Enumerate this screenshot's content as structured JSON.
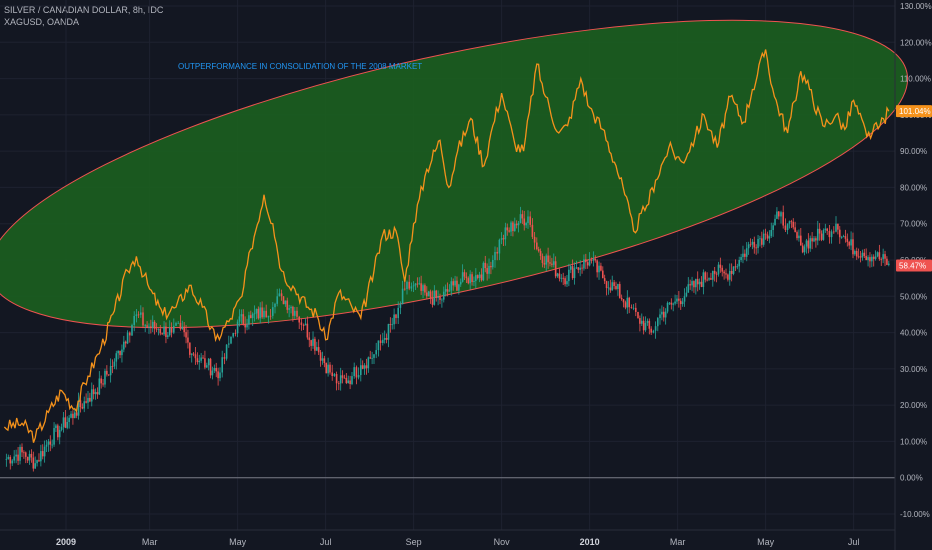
{
  "header": {
    "title": "SILVER / CANADIAN DOLLAR, 8h, IDC",
    "compare": "XAGUSD, OANDA"
  },
  "colors": {
    "background": "#131722",
    "grid": "#1e2230",
    "main_up": "#26a69a",
    "main_down": "#ef5350",
    "compare_line": "#f5921b",
    "ellipse_fill": "#1b5e20",
    "ellipse_stroke": "#ef5350",
    "annotation": "#2196f3",
    "zero_line": "#787b86",
    "axis_text": "#b2b5be"
  },
  "annotation": {
    "text": "OUTPERFORMANCE IN CONSOLIDATION OF THE 2008 MARKET"
  },
  "chart_data": {
    "type": "line",
    "y_axis": {
      "unit": "%",
      "ylim": [
        -15,
        130
      ],
      "ticks": [
        "130.00%",
        "120.00%",
        "110.00%",
        "100.00%",
        "90.00%",
        "80.00%",
        "70.00%",
        "60.00%",
        "50.00%",
        "40.00%",
        "30.00%",
        "20.00%",
        "10.00%",
        "0.00%",
        "-10.00%"
      ],
      "tick_values": [
        130,
        120,
        110,
        100,
        90,
        80,
        70,
        60,
        50,
        40,
        30,
        20,
        10,
        0,
        -10
      ]
    },
    "x_axis": {
      "ticks": [
        {
          "label": "2009",
          "strong": true
        },
        {
          "label": "Mar",
          "strong": false
        },
        {
          "label": "May",
          "strong": false
        },
        {
          "label": "Jul",
          "strong": false
        },
        {
          "label": "Sep",
          "strong": false
        },
        {
          "label": "Nov",
          "strong": false
        },
        {
          "label": "2010",
          "strong": true
        },
        {
          "label": "Mar",
          "strong": false
        },
        {
          "label": "May",
          "strong": false
        },
        {
          "label": "Jul",
          "strong": false
        }
      ],
      "tick_months": [
        0.4,
        2.3,
        4.3,
        6.3,
        8.3,
        10.3,
        12.3,
        14.3,
        16.3,
        18.3
      ],
      "range_months": [
        -1.1,
        19.3
      ]
    },
    "series": [
      {
        "style": "candles",
        "last_label": "58.47%",
        "last_value": 58.47,
        "points": [
          [
            -1.0,
            5
          ],
          [
            -0.6,
            7
          ],
          [
            -0.3,
            4
          ],
          [
            0.0,
            10
          ],
          [
            0.3,
            14
          ],
          [
            0.6,
            18
          ],
          [
            0.9,
            22
          ],
          [
            1.2,
            26
          ],
          [
            1.5,
            32
          ],
          [
            1.8,
            40
          ],
          [
            2.0,
            45
          ],
          [
            2.2,
            42
          ],
          [
            2.5,
            41
          ],
          [
            2.8,
            40
          ],
          [
            3.0,
            41
          ],
          [
            3.3,
            34
          ],
          [
            3.6,
            31
          ],
          [
            3.9,
            29
          ],
          [
            4.1,
            37
          ],
          [
            4.3,
            43
          ],
          [
            4.6,
            44
          ],
          [
            4.9,
            46
          ],
          [
            5.1,
            47
          ],
          [
            5.3,
            50
          ],
          [
            5.6,
            46
          ],
          [
            5.8,
            42
          ],
          [
            6.1,
            36
          ],
          [
            6.4,
            29
          ],
          [
            6.6,
            26
          ],
          [
            6.9,
            28
          ],
          [
            7.1,
            31
          ],
          [
            7.4,
            34
          ],
          [
            7.6,
            38
          ],
          [
            7.9,
            44
          ],
          [
            8.1,
            52
          ],
          [
            8.3,
            53
          ],
          [
            8.6,
            50
          ],
          [
            8.9,
            49
          ],
          [
            9.2,
            53
          ],
          [
            9.5,
            55
          ],
          [
            9.8,
            56
          ],
          [
            10.1,
            60
          ],
          [
            10.3,
            66
          ],
          [
            10.6,
            70
          ],
          [
            10.9,
            72
          ],
          [
            11.1,
            63
          ],
          [
            11.4,
            59
          ],
          [
            11.7,
            55
          ],
          [
            12.0,
            58
          ],
          [
            12.3,
            60
          ],
          [
            12.6,
            55
          ],
          [
            12.9,
            52
          ],
          [
            13.2,
            47
          ],
          [
            13.4,
            44
          ],
          [
            13.7,
            40
          ],
          [
            13.9,
            45
          ],
          [
            14.2,
            48
          ],
          [
            14.5,
            51
          ],
          [
            14.8,
            54
          ],
          [
            15.1,
            57
          ],
          [
            15.4,
            56
          ],
          [
            15.7,
            60
          ],
          [
            16.0,
            65
          ],
          [
            16.3,
            67
          ],
          [
            16.6,
            72
          ],
          [
            16.8,
            70
          ],
          [
            17.1,
            64
          ],
          [
            17.4,
            66
          ],
          [
            17.7,
            68
          ],
          [
            17.9,
            70
          ],
          [
            18.2,
            64
          ],
          [
            18.5,
            62
          ],
          [
            18.8,
            61
          ],
          [
            19.1,
            59
          ]
        ]
      },
      {
        "style": "line",
        "last_label": "101.04%",
        "last_value": 101.04,
        "points": [
          [
            -1.0,
            14
          ],
          [
            -0.6,
            15
          ],
          [
            -0.3,
            11
          ],
          [
            0.0,
            18
          ],
          [
            0.3,
            24
          ],
          [
            0.6,
            19
          ],
          [
            0.9,
            28
          ],
          [
            1.2,
            36
          ],
          [
            1.5,
            46
          ],
          [
            1.8,
            57
          ],
          [
            2.0,
            61
          ],
          [
            2.3,
            52
          ],
          [
            2.6,
            45
          ],
          [
            2.9,
            47
          ],
          [
            3.2,
            53
          ],
          [
            3.5,
            47
          ],
          [
            3.8,
            38
          ],
          [
            4.1,
            43
          ],
          [
            4.4,
            50
          ],
          [
            4.6,
            63
          ],
          [
            4.9,
            78
          ],
          [
            5.1,
            70
          ],
          [
            5.3,
            57
          ],
          [
            5.6,
            52
          ],
          [
            5.9,
            47
          ],
          [
            6.1,
            45
          ],
          [
            6.3,
            38
          ],
          [
            6.6,
            51
          ],
          [
            6.9,
            47
          ],
          [
            7.1,
            44
          ],
          [
            7.4,
            57
          ],
          [
            7.6,
            67
          ],
          [
            7.9,
            68
          ],
          [
            8.1,
            54
          ],
          [
            8.3,
            70
          ],
          [
            8.6,
            85
          ],
          [
            8.9,
            93
          ],
          [
            9.1,
            80
          ],
          [
            9.3,
            90
          ],
          [
            9.6,
            99
          ],
          [
            9.9,
            86
          ],
          [
            10.1,
            97
          ],
          [
            10.3,
            106
          ],
          [
            10.6,
            92
          ],
          [
            10.8,
            90
          ],
          [
            11.1,
            114
          ],
          [
            11.3,
            105
          ],
          [
            11.6,
            95
          ],
          [
            11.8,
            97
          ],
          [
            12.1,
            110
          ],
          [
            12.3,
            102
          ],
          [
            12.6,
            96
          ],
          [
            12.9,
            86
          ],
          [
            13.1,
            78
          ],
          [
            13.3,
            68
          ],
          [
            13.6,
            75
          ],
          [
            13.8,
            82
          ],
          [
            14.1,
            91
          ],
          [
            14.4,
            87
          ],
          [
            14.7,
            94
          ],
          [
            14.9,
            100
          ],
          [
            15.2,
            91
          ],
          [
            15.5,
            105
          ],
          [
            15.8,
            98
          ],
          [
            16.0,
            107
          ],
          [
            16.3,
            118
          ],
          [
            16.5,
            105
          ],
          [
            16.8,
            95
          ],
          [
            17.1,
            112
          ],
          [
            17.3,
            107
          ],
          [
            17.6,
            97
          ],
          [
            17.9,
            100
          ],
          [
            18.1,
            96
          ],
          [
            18.3,
            104
          ],
          [
            18.6,
            94
          ],
          [
            18.9,
            97
          ],
          [
            19.1,
            101
          ]
        ]
      }
    ],
    "grid": true
  }
}
